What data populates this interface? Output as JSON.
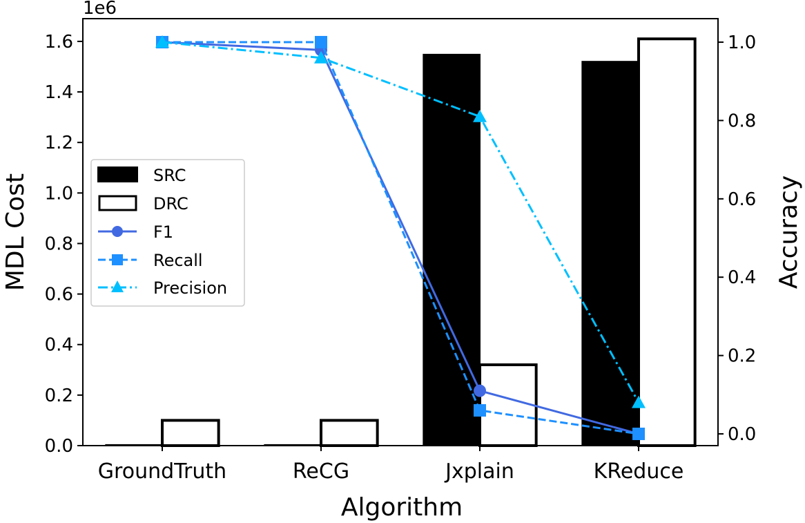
{
  "chart_data": {
    "type": "bar",
    "xlabel": "Algorithm",
    "categories": [
      "GroundTruth",
      "ReCG",
      "Jxplain",
      "KReduce"
    ],
    "left_axis": {
      "label": "MDL Cost",
      "offset_text": "1e6",
      "ylim": [
        0,
        1.69
      ],
      "ticks": [
        "0.0",
        "0.2",
        "0.4",
        "0.6",
        "0.8",
        "1.0",
        "1.2",
        "1.4",
        "1.6"
      ]
    },
    "right_axis": {
      "label": "Accuracy",
      "ylim": [
        -0.03,
        1.06
      ],
      "ticks": [
        "0.0",
        "0.2",
        "0.4",
        "0.6",
        "0.8",
        "1.0"
      ]
    },
    "bar_series": [
      {
        "name": "SRC",
        "axis": "left",
        "fill": "#000000",
        "stroke": "#000000",
        "values": [
          0.003,
          0.003,
          1.548,
          1.52
        ]
      },
      {
        "name": "DRC",
        "axis": "left",
        "fill": "#ffffff",
        "stroke": "#000000",
        "values": [
          0.1,
          0.1,
          0.32,
          1.61
        ]
      }
    ],
    "line_series": [
      {
        "name": "F1",
        "axis": "right",
        "color": "#4169e1",
        "marker": "circle",
        "dash": "solid",
        "values": [
          1.0,
          0.98,
          0.11,
          0.0
        ]
      },
      {
        "name": "Recall",
        "axis": "right",
        "color": "#1e90ff",
        "marker": "square",
        "dash": "dashed",
        "values": [
          1.0,
          1.0,
          0.06,
          0.0
        ]
      },
      {
        "name": "Precision",
        "axis": "right",
        "color": "#00bfff",
        "marker": "triangle",
        "dash": "dashdot",
        "values": [
          1.0,
          0.96,
          0.81,
          0.08
        ]
      }
    ],
    "legend": {
      "position": "center-left"
    },
    "grid": false
  }
}
